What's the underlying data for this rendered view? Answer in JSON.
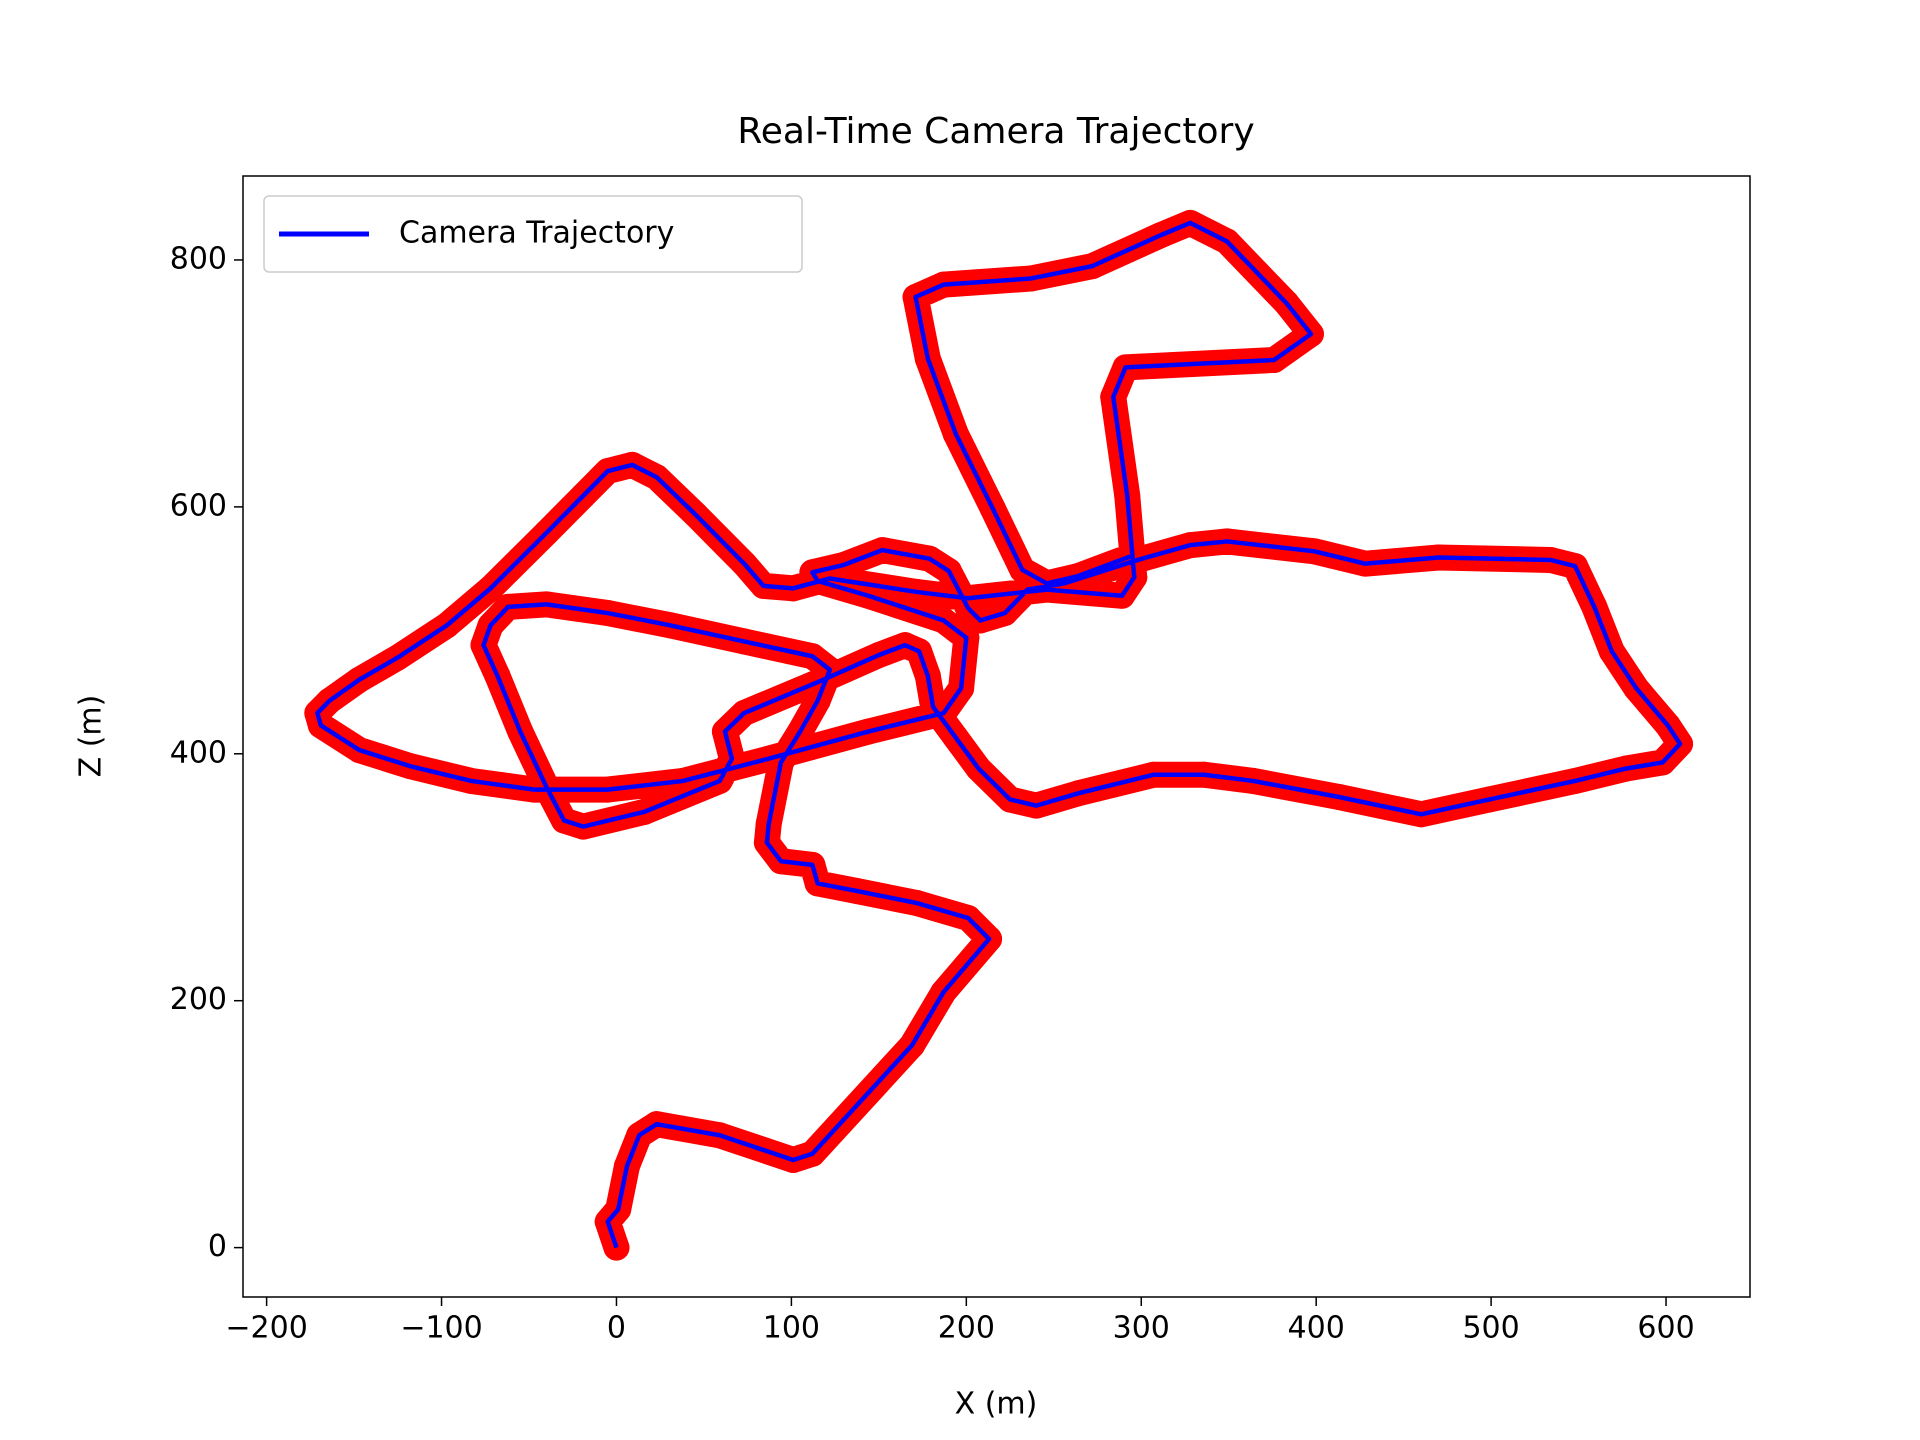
{
  "chart_data": {
    "type": "line",
    "title": "Real-Time Camera Trajectory",
    "x_label": "X (m)",
    "y_label": "Z (m)",
    "x": [
      0,
      -5,
      1,
      6,
      13,
      23,
      59,
      101,
      112,
      169,
      187,
      213,
      201,
      172,
      137,
      115,
      112,
      94,
      86,
      87,
      94,
      105,
      115,
      122,
      112,
      73,
      31,
      -5,
      -40,
      -62,
      -72,
      -76,
      -68,
      -55,
      -40,
      -30,
      -19,
      16,
      59,
      66,
      62,
      73,
      115,
      150,
      165,
      173,
      178,
      181,
      194,
      207,
      225,
      240,
      264,
      307,
      336,
      364,
      413,
      460,
      499,
      548,
      577,
      598,
      608,
      601,
      583,
      569,
      559,
      548,
      534,
      470,
      428,
      399,
      349,
      328,
      298,
      256,
      235,
      222,
      208,
      201,
      190,
      179,
      152,
      130,
      112,
      115,
      144,
      187,
      200,
      197,
      187,
      144,
      87,
      38,
      -5,
      -47,
      -83,
      -118,
      -147,
      -169,
      -171,
      -164,
      -147,
      -125,
      -97,
      -72,
      -40,
      -19,
      -5,
      9,
      23,
      45,
      73,
      84,
      101,
      122,
      172,
      201,
      246,
      289,
      296,
      292,
      284,
      291,
      376,
      397,
      383,
      349,
      328,
      311,
      272,
      237,
      187,
      171,
      178,
      194,
      215,
      232,
      246,
      264,
      296
    ],
    "series": [
      {
        "name": "Camera Trajectory",
        "color": "#0000ff",
        "marker_color": "#ff0000",
        "values": [
          0,
          21,
          31,
          66,
          91,
          100,
          91,
          71,
          76,
          164,
          207,
          250,
          267,
          279,
          289,
          295,
          310,
          313,
          328,
          343,
          393,
          418,
          443,
          468,
          479,
          491,
          504,
          514,
          521,
          519,
          504,
          488,
          463,
          418,
          373,
          346,
          341,
          353,
          378,
          396,
          418,
          433,
          458,
          480,
          488,
          483,
          463,
          438,
          413,
          388,
          363,
          358,
          368,
          383,
          383,
          378,
          365,
          351,
          363,
          378,
          388,
          393,
          408,
          423,
          453,
          483,
          519,
          552,
          557,
          559,
          554,
          564,
          572,
          569,
          557,
          538,
          533,
          514,
          508,
          518,
          548,
          558,
          565,
          553,
          547,
          540,
          528,
          508,
          494,
          453,
          433,
          418,
          396,
          378,
          371,
          371,
          378,
          390,
          403,
          423,
          433,
          443,
          460,
          478,
          504,
          534,
          579,
          609,
          629,
          634,
          624,
          594,
          554,
          536,
          534,
          542,
          531,
          526,
          533,
          528,
          543,
          609,
          689,
          713,
          719,
          740,
          765,
          815,
          830,
          820,
          795,
          785,
          780,
          770,
          720,
          659,
          599,
          549,
          538,
          544,
          561
        ]
      }
    ],
    "xlim": [
      -213.5,
      648
    ],
    "ylim": [
      -40,
      868
    ],
    "xticks": [
      {
        "value": -200,
        "label": "−200"
      },
      {
        "value": -100,
        "label": "−100"
      },
      0,
      100,
      200,
      300,
      400,
      500,
      600
    ],
    "yticks": [
      0,
      200,
      400,
      600,
      800
    ],
    "grid": false,
    "legend": "upper left"
  }
}
